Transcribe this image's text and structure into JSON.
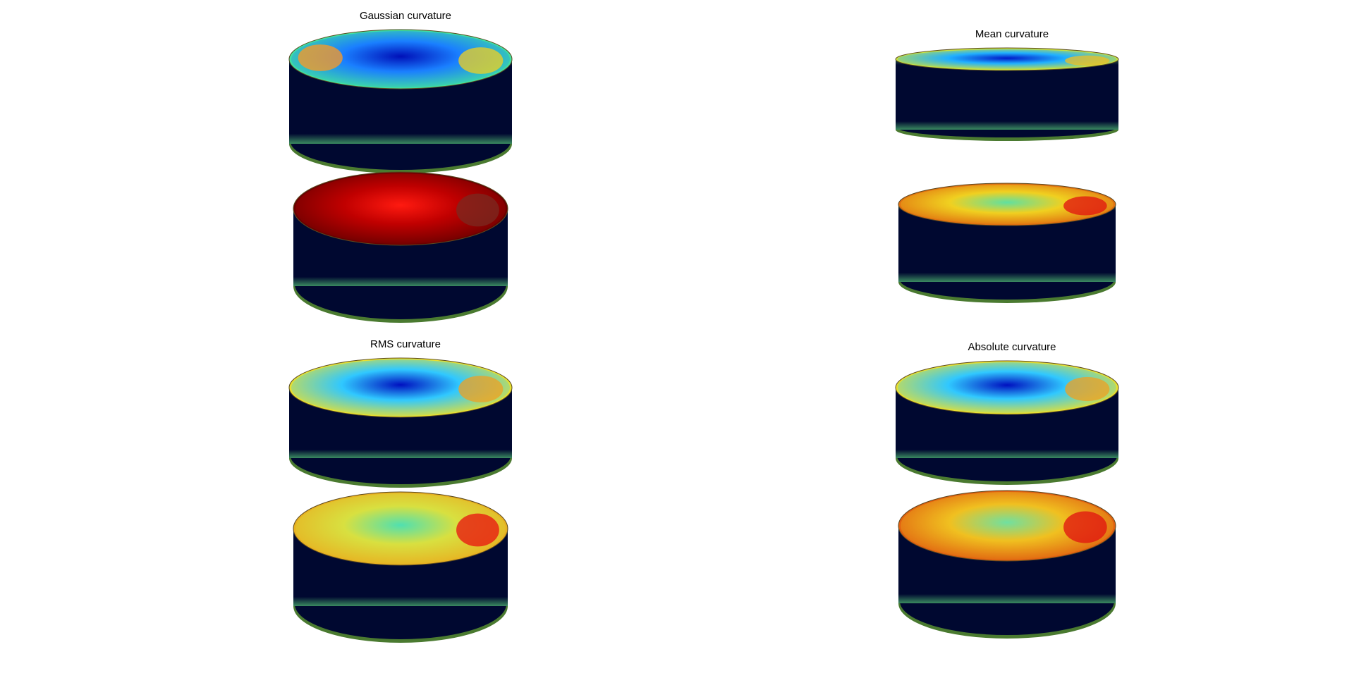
{
  "figure": {
    "background": "#ffffff",
    "colormap": "jet",
    "panels": [
      {
        "id": "gaussian",
        "title": "Gaussian curvature",
        "upper_cylinder": {
          "top_center": "#0010b8",
          "top_mid": "#1a7fff",
          "top_edge": "#40e0a0",
          "top_accents": [
            "#f0d020",
            "#ff9a20"
          ],
          "side": "#000830"
        },
        "lower_cylinder": {
          "top_center": "#ff1a10",
          "top_mid": "#c00000",
          "top_edge": "#6a0000",
          "top_accents": [
            "#7a2a20"
          ],
          "side": "#000830"
        }
      },
      {
        "id": "mean",
        "title": "Mean curvature",
        "upper_cylinder": {
          "top_center": "#0018c8",
          "top_mid": "#20b0ff",
          "top_edge": "#c8e040",
          "top_accents": [
            "#f0c020"
          ],
          "side": "#000830"
        },
        "lower_cylinder": {
          "top_center": "#60e0a0",
          "top_mid": "#f0d020",
          "top_edge": "#e07010",
          "top_accents": [
            "#e01010"
          ],
          "side": "#000830"
        }
      },
      {
        "id": "rms",
        "title": "RMS curvature",
        "upper_cylinder": {
          "top_center": "#0010c0",
          "top_mid": "#30c8ff",
          "top_edge": "#e8e030",
          "top_accents": [
            "#f0a020"
          ],
          "side": "#000830"
        },
        "lower_cylinder": {
          "top_center": "#50e0b0",
          "top_mid": "#d8e040",
          "top_edge": "#e8b020",
          "top_accents": [
            "#e81010"
          ],
          "side": "#000830"
        }
      },
      {
        "id": "absolute",
        "title": "Absolute curvature",
        "upper_cylinder": {
          "top_center": "#0010c0",
          "top_mid": "#30c8ff",
          "top_edge": "#e8e030",
          "top_accents": [
            "#f0a020"
          ],
          "side": "#000830"
        },
        "lower_cylinder": {
          "top_center": "#70e0a0",
          "top_mid": "#f0c020",
          "top_edge": "#e06010",
          "top_accents": [
            "#e01010"
          ],
          "side": "#000830"
        }
      }
    ]
  }
}
